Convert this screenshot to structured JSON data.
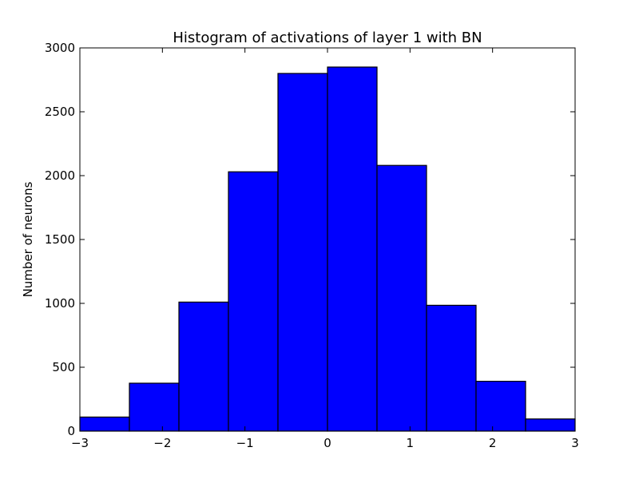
{
  "chart_data": {
    "type": "bar",
    "title": "Histogram of activations of layer 1  with BN",
    "xlabel": "",
    "ylabel": "Number of neurons",
    "bin_edges": [
      -3,
      -2.4,
      -1.8,
      -1.2,
      -0.6,
      0,
      0.6,
      1.2,
      1.8,
      2.4,
      3
    ],
    "values": [
      110,
      375,
      1010,
      2030,
      2800,
      2850,
      2080,
      985,
      390,
      95
    ],
    "xlim": [
      -3,
      3
    ],
    "ylim": [
      0,
      3000
    ],
    "xticks": [
      -3,
      -2,
      -1,
      0,
      1,
      2,
      3
    ],
    "xtick_labels": [
      "−3",
      "−2",
      "−1",
      "0",
      "1",
      "2",
      "3"
    ],
    "yticks": [
      0,
      500,
      1000,
      1500,
      2000,
      2500,
      3000
    ],
    "ytick_labels": [
      "0",
      "500",
      "1000",
      "1500",
      "2000",
      "2500",
      "3000"
    ],
    "bar_color": "#0000ff",
    "edge_color": "#000000",
    "grid": false
  }
}
